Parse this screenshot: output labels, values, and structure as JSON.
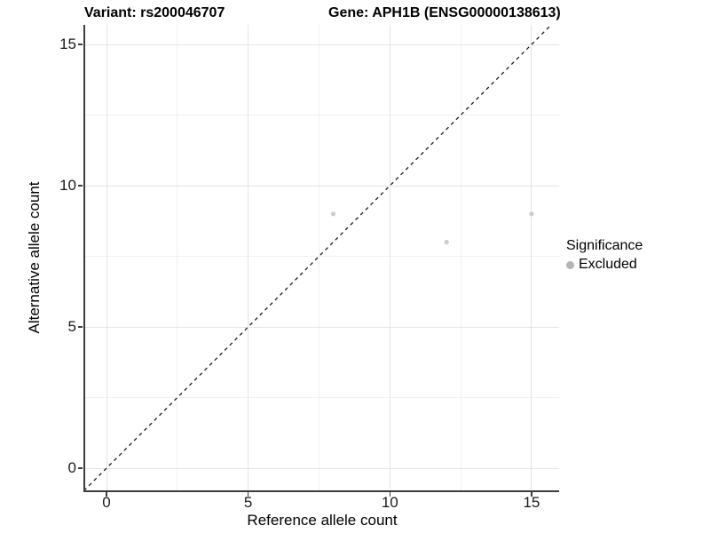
{
  "titles": {
    "variant": "Variant: rs200046707",
    "gene": "Gene: APH1B (ENSG00000138613)"
  },
  "axes": {
    "x": {
      "label": "Reference allele count"
    },
    "y": {
      "label": "Alternative allele count"
    }
  },
  "legend": {
    "title": "Significance",
    "items": [
      {
        "label": "Excluded",
        "color": "#b5b5b5"
      }
    ]
  },
  "colors": {
    "background": "#ffffff",
    "point": "#cbcbcb",
    "legend_point": "#b5b5b5",
    "grid_major": "#e4e4e4",
    "grid_minor": "#f1f1f1",
    "axis_line": "#3c3c3c",
    "diagonal_line": "#1a1a1a",
    "title_text": "#000000",
    "tick_text": "#1a1a1a"
  },
  "chart_data": {
    "type": "scatter",
    "title": "Variant: rs200046707 — Gene: APH1B (ENSG00000138613)",
    "xlabel": "Reference allele count",
    "ylabel": "Alternative allele count",
    "xticks": [
      0,
      5,
      10,
      15
    ],
    "yticks": [
      0,
      5,
      10,
      15
    ],
    "xlim": [
      -0.8,
      15.95
    ],
    "ylim": [
      -0.8,
      15.7
    ],
    "grid": "major gridlines at ticks, minor gridlines at midpoints, light gray on white",
    "legend_position": "right-middle",
    "series": [
      {
        "name": "Excluded",
        "color": "#cbcbcb",
        "marker": "circle",
        "points": [
          {
            "x": 8,
            "y": 9
          },
          {
            "x": 12,
            "y": 8
          },
          {
            "x": 15,
            "y": 9
          }
        ]
      }
    ],
    "reference_line": {
      "type": "abline",
      "slope": 1,
      "intercept": 0,
      "style": "dashed",
      "color": "#1a1a1a"
    }
  }
}
